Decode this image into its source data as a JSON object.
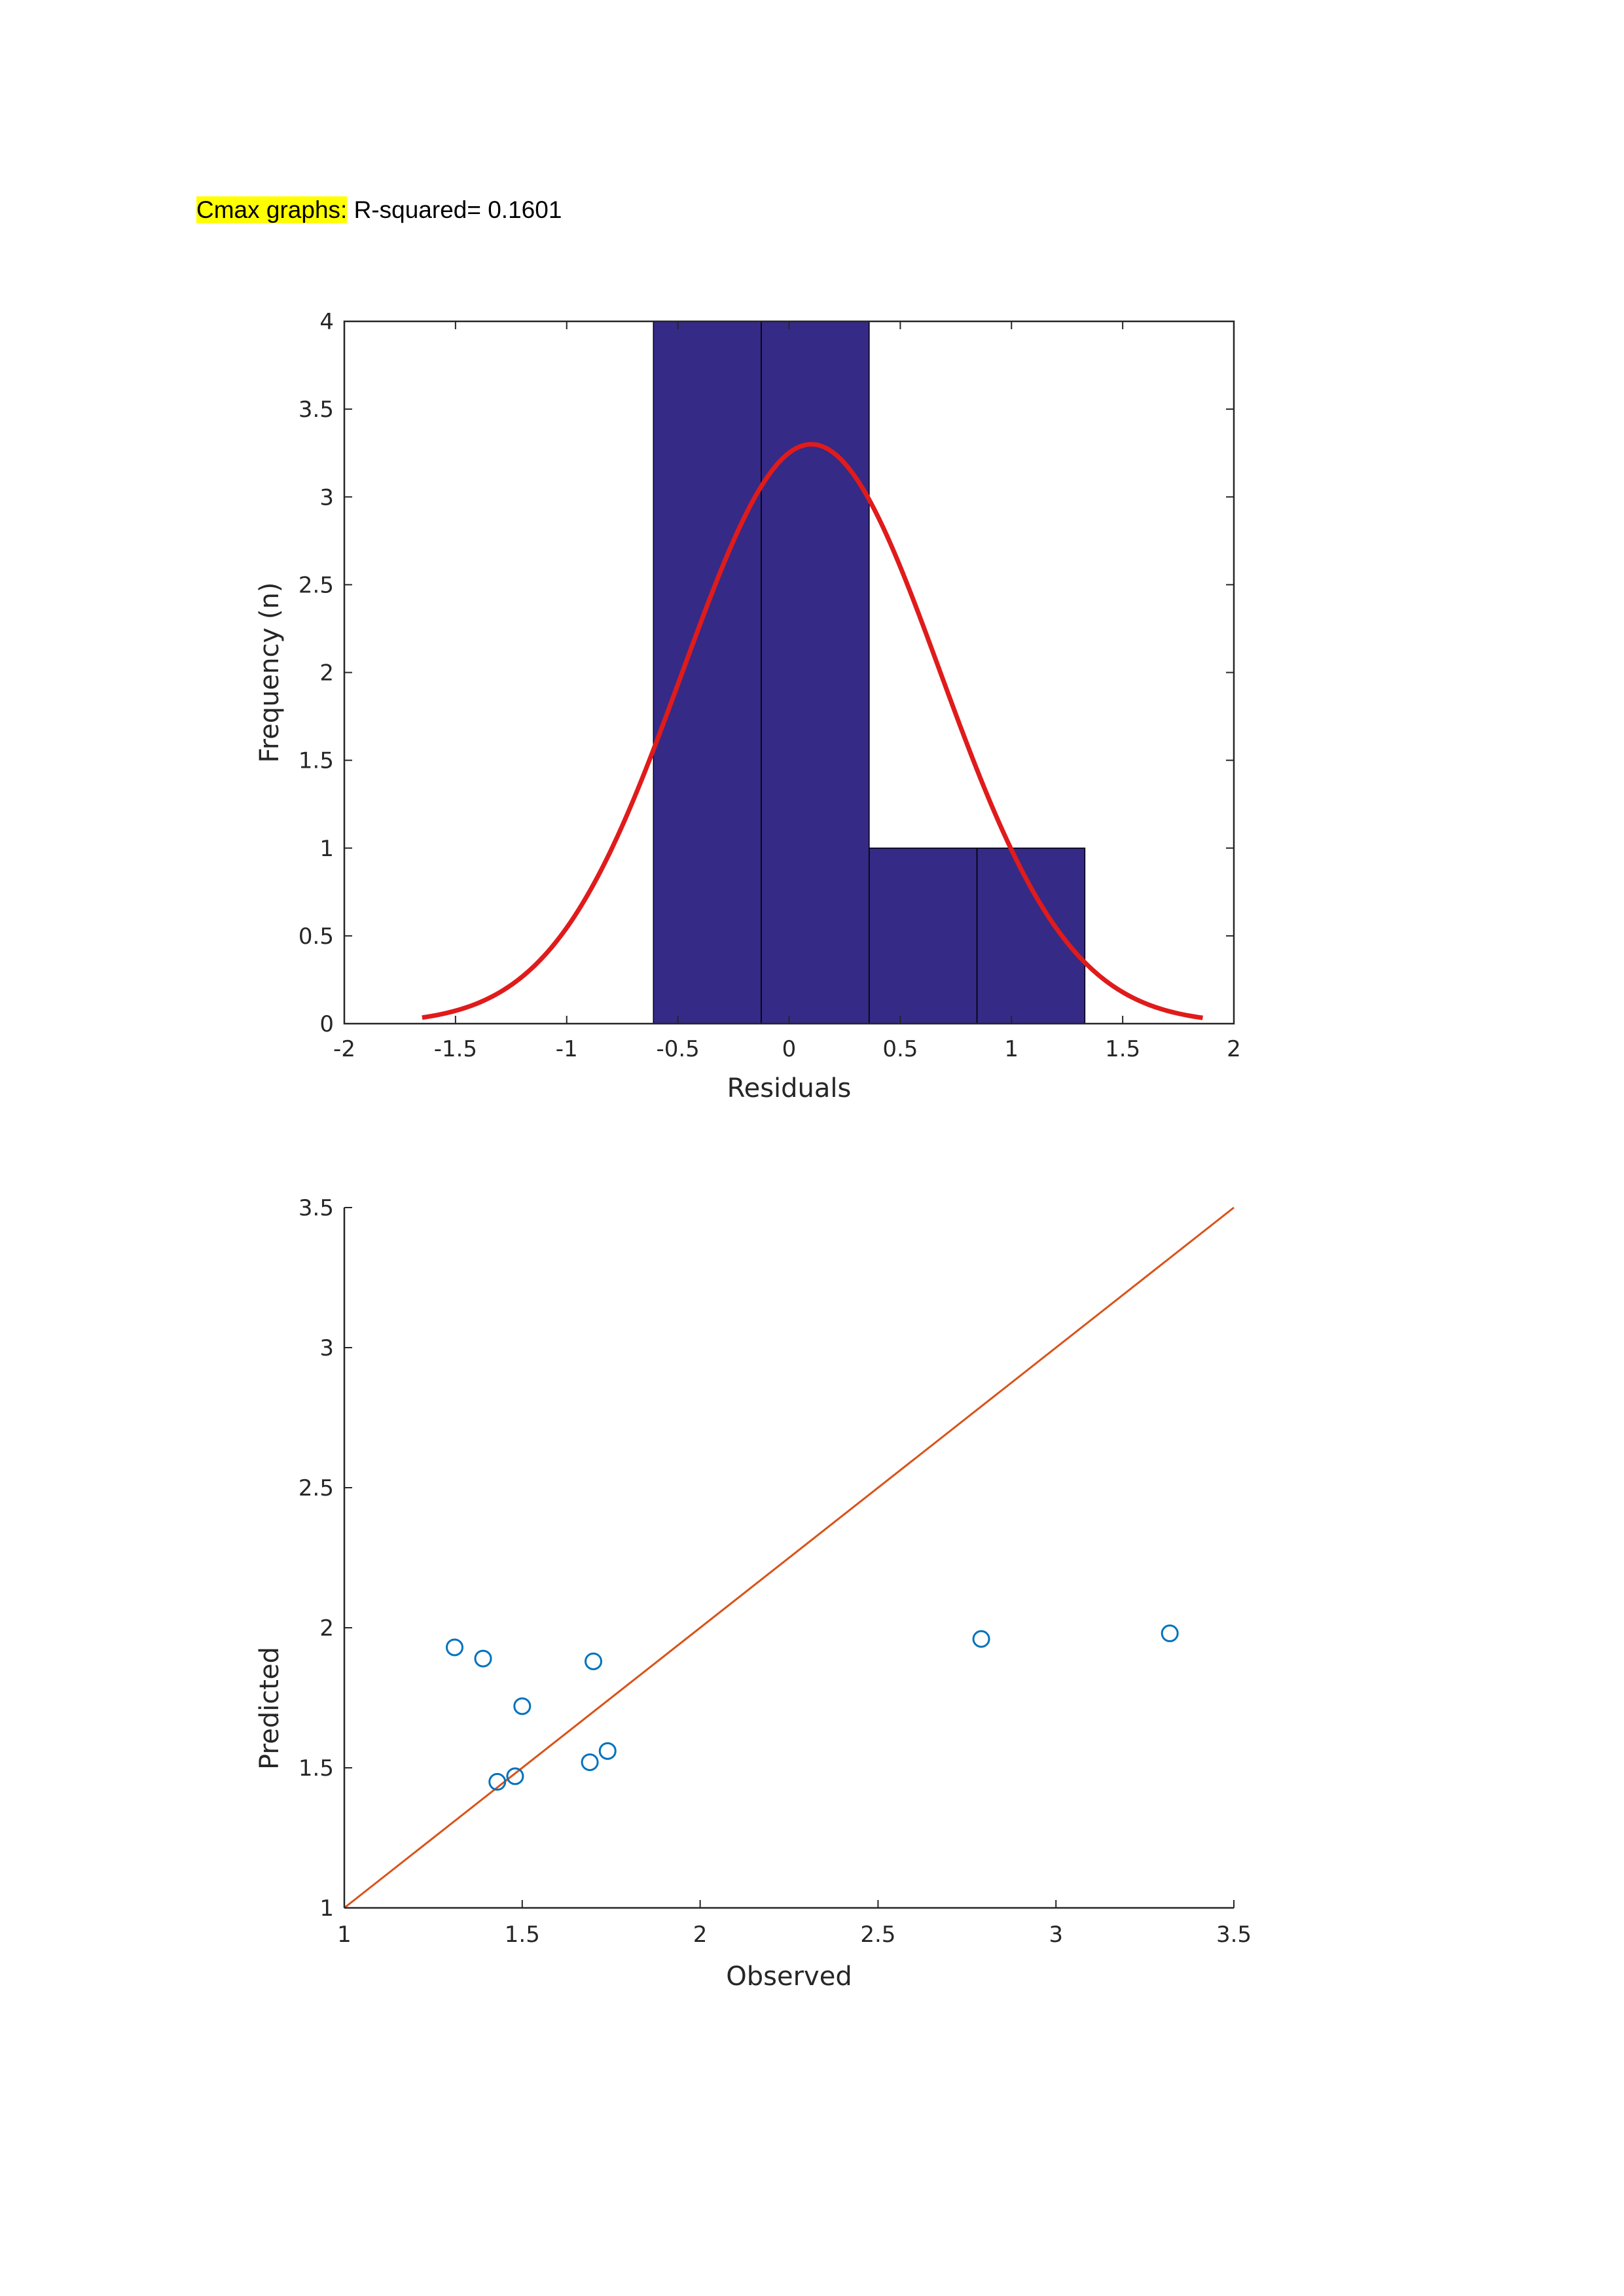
{
  "header": {
    "highlight_label": "Cmax graphs:",
    "rest": " R-squared= 0.1601"
  },
  "colors": {
    "bar_fill": "#352a86",
    "fit_curve": "#e01b1b",
    "identity_line": "#d95319",
    "marker": "#0072bd",
    "axis": "#262626",
    "highlight": "#ffff00"
  },
  "chart_data": [
    {
      "type": "bar",
      "subtype": "histogram-with-normal-fit",
      "title": "",
      "xlabel": "Residuals",
      "ylabel": "Frequency (n)",
      "xlim": [
        -2,
        2
      ],
      "ylim": [
        0,
        4
      ],
      "xticks": [
        "-2",
        "-1.5",
        "-1",
        "-0.5",
        "0",
        "0.5",
        "1",
        "1.5",
        "2"
      ],
      "yticks": [
        "0",
        "0.5",
        "1",
        "1.5",
        "2",
        "2.5",
        "3",
        "3.5",
        "4"
      ],
      "bins": [
        {
          "from": -0.61,
          "to": -0.125,
          "count": 4
        },
        {
          "from": -0.125,
          "to": 0.36,
          "count": 4
        },
        {
          "from": 0.36,
          "to": 0.845,
          "count": 1
        },
        {
          "from": 0.845,
          "to": 1.33,
          "count": 1
        }
      ],
      "normal_fit": {
        "mean": 0.1,
        "sd": 0.58,
        "peak": 3.3,
        "x_range": [
          -1.65,
          1.86
        ]
      }
    },
    {
      "type": "scatter",
      "title": "",
      "xlabel": "Observed",
      "ylabel": "Predicted",
      "xlim": [
        1,
        3.5
      ],
      "ylim": [
        1,
        3.5
      ],
      "xticks": [
        "1",
        "1.5",
        "2",
        "2.5",
        "3",
        "3.5"
      ],
      "yticks": [
        "1",
        "1.5",
        "2",
        "2.5",
        "3",
        "3.5"
      ],
      "points": [
        {
          "x": 1.31,
          "y": 1.93
        },
        {
          "x": 1.39,
          "y": 1.89
        },
        {
          "x": 1.43,
          "y": 1.45
        },
        {
          "x": 1.48,
          "y": 1.47
        },
        {
          "x": 1.5,
          "y": 1.72
        },
        {
          "x": 1.69,
          "y": 1.52
        },
        {
          "x": 1.7,
          "y": 1.88
        },
        {
          "x": 1.74,
          "y": 1.56
        },
        {
          "x": 2.79,
          "y": 1.96
        },
        {
          "x": 3.32,
          "y": 1.98
        }
      ],
      "reference_line": {
        "from": [
          1,
          1
        ],
        "to": [
          3.5,
          3.5
        ]
      }
    }
  ]
}
